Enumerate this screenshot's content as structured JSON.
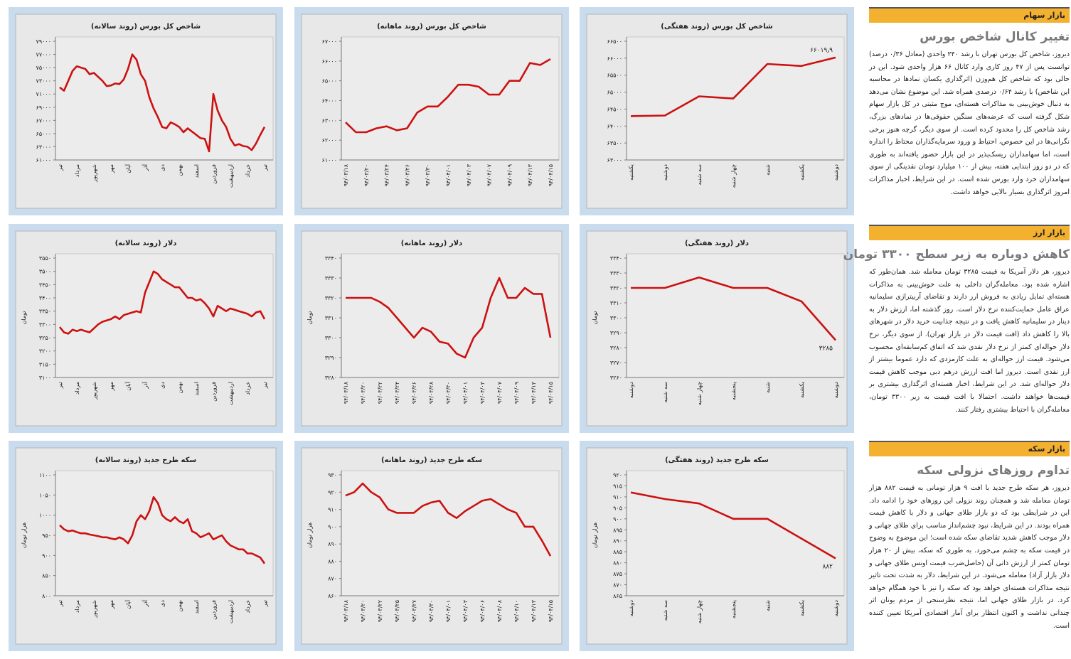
{
  "chart_data": [
    {
      "type": "line",
      "title": "شاخص کل بورس (روند هفتگی)",
      "color": "#cc1111",
      "categories": [
        "یکشنبه",
        "دوشنبه",
        "سه شنبه",
        "چهار شنبه",
        "شنبه",
        "یکشنبه",
        "دوشنبه"
      ],
      "values": [
        64290,
        64310,
        64875,
        64810,
        65830,
        65770,
        66019.9
      ],
      "value_labels": [
        null,
        null,
        null,
        null,
        null,
        null,
        "۶۶۰۱۹٫۹"
      ],
      "ylim": [
        63000,
        66500
      ],
      "yticks": [
        {
          "value": 63000,
          "label": "۶۳۰۰۰"
        },
        {
          "value": 63500,
          "label": "۶۳۵۰۰"
        },
        {
          "value": 64000,
          "label": "۶۴۰۰۰"
        },
        {
          "value": 64500,
          "label": "۶۴۵۰۰"
        },
        {
          "value": 65000,
          "label": "۶۵۰۰۰"
        },
        {
          "value": 65500,
          "label": "۶۵۵۰۰"
        },
        {
          "value": 66000,
          "label": "۶۶۰۰۰"
        },
        {
          "value": 66500,
          "label": "۶۶۵۰۰"
        }
      ]
    },
    {
      "type": "line",
      "title": "شاخص کل بورس (روند ماهانه)",
      "color": "#cc1111",
      "categories": [
        "۹۴/۰۳/۱۸",
        null,
        "۹۴/۰۳/۲۰",
        null,
        "۹۴/۰۳/۲۴",
        null,
        "۹۴/۰۳/۲۶",
        null,
        "۹۴/۰۳/۳۰",
        null,
        "۹۴/۰۴/۰۱",
        null,
        "۹۴/۰۴/۰۳",
        null,
        "۹۴/۰۴/۰۷",
        null,
        "۹۴/۰۴/۰۹",
        null,
        "۹۴/۰۴/۱۳",
        null,
        "۹۴/۰۴/۱۵"
      ],
      "values": [
        62900,
        62400,
        62400,
        62600,
        62700,
        62500,
        62600,
        63400,
        63700,
        63700,
        64200,
        64800,
        64800,
        64700,
        64300,
        64300,
        65000,
        65000,
        65900,
        65800,
        66100
      ],
      "ylim": [
        61000,
        67000
      ],
      "yticks": [
        {
          "value": 61000,
          "label": "۶۱۰۰۰"
        },
        {
          "value": 62000,
          "label": "۶۲۰۰۰"
        },
        {
          "value": 63000,
          "label": "۶۳۰۰۰"
        },
        {
          "value": 64000,
          "label": "۶۴۰۰۰"
        },
        {
          "value": 65000,
          "label": "۶۵۰۰۰"
        },
        {
          "value": 66000,
          "label": "۶۶۰۰۰"
        },
        {
          "value": 67000,
          "label": "۶۷۰۰۰"
        }
      ]
    },
    {
      "type": "line",
      "title": "شاخص کل بورس (روند سالانه)",
      "color": "#cc1111",
      "categories": [
        "تیر",
        null,
        null,
        null,
        "مرداد",
        null,
        null,
        null,
        "شهریور",
        null,
        null,
        null,
        "مهر",
        null,
        null,
        null,
        "آبان",
        null,
        null,
        null,
        "آذر",
        null,
        null,
        null,
        "دی",
        null,
        null,
        null,
        "بهمن",
        null,
        null,
        null,
        "اسفند",
        null,
        null,
        null,
        "فروردین",
        null,
        null,
        null,
        "اردیبهشت",
        null,
        null,
        null,
        "خرداد",
        null,
        null,
        null,
        "تیر"
      ],
      "values": [
        72000,
        71500,
        73000,
        74500,
        75200,
        75000,
        74800,
        74000,
        74200,
        73600,
        73000,
        72200,
        72300,
        72600,
        72500,
        73200,
        74800,
        77000,
        76200,
        74000,
        73000,
        70500,
        68800,
        67500,
        66000,
        65800,
        66700,
        66400,
        66000,
        65200,
        65800,
        65300,
        64800,
        64300,
        64200,
        62300,
        71000,
        68500,
        67000,
        66000,
        64200,
        63200,
        63400,
        63100,
        63000,
        62500,
        63500,
        64800,
        66000
      ],
      "ylim": [
        61000,
        79000
      ],
      "yticks": [
        {
          "value": 61000,
          "label": "۶۱۰۰۰"
        },
        {
          "value": 63000,
          "label": "۶۳۰۰۰"
        },
        {
          "value": 65000,
          "label": "۶۵۰۰۰"
        },
        {
          "value": 67000,
          "label": "۶۷۰۰۰"
        },
        {
          "value": 69000,
          "label": "۶۹۰۰۰"
        },
        {
          "value": 71000,
          "label": "۷۱۰۰۰"
        },
        {
          "value": 73000,
          "label": "۷۳۰۰۰"
        },
        {
          "value": 75000,
          "label": "۷۵۰۰۰"
        },
        {
          "value": 77000,
          "label": "۷۷۰۰۰"
        },
        {
          "value": 79000,
          "label": "۷۹۰۰۰"
        }
      ]
    },
    {
      "type": "line",
      "title": "دلار (روند هفتگی)",
      "ylabel": "تومان",
      "color": "#cc1111",
      "categories": [
        "دوشنبه",
        "سه شنبه",
        "چهار شنبه",
        "پنجشنبه",
        "شنبه",
        "یکشنبه",
        "دوشنبه"
      ],
      "values": [
        3320,
        3320,
        3327,
        3320,
        3320,
        3311,
        3285
      ],
      "value_labels": [
        null,
        null,
        null,
        null,
        null,
        null,
        "۳۲۸۵"
      ],
      "ylim": [
        3260,
        3340
      ],
      "yticks": [
        {
          "value": 3260,
          "label": "۳۲۶۰"
        },
        {
          "value": 3270,
          "label": "۳۲۷۰"
        },
        {
          "value": 3280,
          "label": "۳۲۸۰"
        },
        {
          "value": 3290,
          "label": "۳۲۹۰"
        },
        {
          "value": 3300,
          "label": "۳۳۰۰"
        },
        {
          "value": 3310,
          "label": "۳۳۱۰"
        },
        {
          "value": 3320,
          "label": "۳۳۲۰"
        },
        {
          "value": 3330,
          "label": "۳۳۳۰"
        },
        {
          "value": 3340,
          "label": "۳۳۴۰"
        }
      ]
    },
    {
      "type": "line",
      "title": "دلار (روند ماهانه)",
      "ylabel": "تومان",
      "color": "#cc1111",
      "categories": [
        "۹۴/۰۳/۱۸",
        null,
        "۹۴/۰۳/۲۰",
        null,
        "۹۴/۰۳/۲۲",
        null,
        "۹۴/۰۳/۲۴",
        null,
        "۹۴/۰۳/۲۶",
        null,
        "۹۴/۰۳/۲۸",
        null,
        "۹۴/۰۳/۳۰",
        null,
        "۹۴/۰۴/۰۱",
        null,
        "۹۴/۰۴/۰۳",
        null,
        "۹۴/۰۴/۰۷",
        null,
        "۹۴/۰۴/۰۹",
        null,
        "۹۴/۰۴/۱۳",
        null,
        "۹۴/۰۴/۱۵"
      ],
      "values": [
        3320,
        3320,
        3320,
        3320,
        3318,
        3315,
        3310,
        3305,
        3300,
        3305,
        3303,
        3298,
        3297,
        3292,
        3290,
        3300,
        3305,
        3320,
        3330,
        3320,
        3320,
        3325,
        3322,
        3322,
        3300
      ],
      "ylim": [
        3280,
        3340
      ],
      "yticks": [
        {
          "value": 3280,
          "label": "۳۲۸۰"
        },
        {
          "value": 3290,
          "label": "۳۲۹۰"
        },
        {
          "value": 3300,
          "label": "۳۳۰۰"
        },
        {
          "value": 3310,
          "label": "۳۳۱۰"
        },
        {
          "value": 3320,
          "label": "۳۳۲۰"
        },
        {
          "value": 3330,
          "label": "۳۳۳۰"
        },
        {
          "value": 3340,
          "label": "۳۳۴۰"
        }
      ]
    },
    {
      "type": "line",
      "title": "دلار (روند سالانه)",
      "ylabel": "تومان",
      "color": "#cc1111",
      "categories": [
        "تیر",
        null,
        null,
        null,
        "مرداد",
        null,
        null,
        null,
        "شهریور",
        null,
        null,
        null,
        "مهر",
        null,
        null,
        null,
        "آبان",
        null,
        null,
        null,
        "آذر",
        null,
        null,
        null,
        "دی",
        null,
        null,
        null,
        "بهمن",
        null,
        null,
        null,
        "اسفند",
        null,
        null,
        null,
        "فروردین",
        null,
        null,
        null,
        "اردیبهشت",
        null,
        null,
        null,
        "خرداد",
        null,
        null,
        null,
        "تیر"
      ],
      "values": [
        3290,
        3270,
        3265,
        3280,
        3275,
        3280,
        3275,
        3270,
        3285,
        3300,
        3310,
        3315,
        3320,
        3330,
        3320,
        3335,
        3340,
        3345,
        3350,
        3345,
        3420,
        3460,
        3500,
        3490,
        3470,
        3460,
        3450,
        3440,
        3440,
        3420,
        3400,
        3400,
        3390,
        3395,
        3380,
        3360,
        3330,
        3370,
        3360,
        3350,
        3360,
        3355,
        3350,
        3345,
        3340,
        3330,
        3345,
        3350,
        3320
      ],
      "ylim": [
        3100,
        3550
      ],
      "yticks": [
        {
          "value": 3100,
          "label": "۳۱۰۰"
        },
        {
          "value": 3150,
          "label": "۳۱۵۰"
        },
        {
          "value": 3200,
          "label": "۳۲۰۰"
        },
        {
          "value": 3250,
          "label": "۳۲۵۰"
        },
        {
          "value": 3300,
          "label": "۳۳۰۰"
        },
        {
          "value": 3350,
          "label": "۳۳۵۰"
        },
        {
          "value": 3400,
          "label": "۳۴۰۰"
        },
        {
          "value": 3450,
          "label": "۳۴۵۰"
        },
        {
          "value": 3500,
          "label": "۳۵۰۰"
        },
        {
          "value": 3550,
          "label": "۳۵۵۰"
        }
      ]
    },
    {
      "type": "line",
      "title": "سکه طرح جدید (روند هفتگی)",
      "ylabel": "هزار تومان",
      "color": "#cc1111",
      "categories": [
        "دوشنبه",
        "سه شنبه",
        "چهار شنبه",
        "پنجشنبه",
        "شنبه",
        "یکشنبه",
        "دوشنبه"
      ],
      "values": [
        912,
        909,
        907,
        900,
        900,
        891,
        882
      ],
      "value_labels": [
        null,
        null,
        null,
        null,
        null,
        null,
        "۸۸۲"
      ],
      "ylim": [
        865,
        920
      ],
      "yticks": [
        {
          "value": 865,
          "label": "۸۶۵"
        },
        {
          "value": 870,
          "label": "۸۷۰"
        },
        {
          "value": 875,
          "label": "۸۷۵"
        },
        {
          "value": 880,
          "label": "۸۸۰"
        },
        {
          "value": 885,
          "label": "۸۸۵"
        },
        {
          "value": 890,
          "label": "۸۹۰"
        },
        {
          "value": 895,
          "label": "۸۹۵"
        },
        {
          "value": 900,
          "label": "۹۰۰"
        },
        {
          "value": 905,
          "label": "۹۰۵"
        },
        {
          "value": 910,
          "label": "۹۱۰"
        },
        {
          "value": 915,
          "label": "۹۱۵"
        },
        {
          "value": 920,
          "label": "۹۲۰"
        }
      ]
    },
    {
      "type": "line",
      "title": "سکه طرح جدید (روند ماهانه)",
      "ylabel": "هزار تومان",
      "color": "#cc1111",
      "categories": [
        "۹۴/۰۳/۱۸",
        null,
        "۹۴/۰۳/۲۰",
        null,
        "۹۴/۰۳/۲۲",
        null,
        "۹۴/۰۳/۲۵",
        null,
        "۹۴/۰۳/۲۷",
        null,
        "۹۴/۰۳/۳۰",
        null,
        "۹۴/۰۴/۰۱",
        null,
        "۹۴/۰۴/۰۳",
        null,
        "۹۴/۰۴/۰۶",
        null,
        "۹۴/۰۴/۰۸",
        null,
        "۹۴/۰۴/۱۰",
        null,
        "۹۴/۰۴/۱۳",
        null,
        "۹۴/۰۴/۱۵"
      ],
      "values": [
        918,
        920,
        925,
        920,
        917,
        910,
        908,
        908,
        908,
        912,
        914,
        915,
        908,
        905,
        909,
        912,
        915,
        916,
        913,
        910,
        908,
        900,
        900,
        892,
        883
      ],
      "ylim": [
        860,
        930
      ],
      "yticks": [
        {
          "value": 860,
          "label": "۸۶۰"
        },
        {
          "value": 870,
          "label": "۸۷۰"
        },
        {
          "value": 880,
          "label": "۸۸۰"
        },
        {
          "value": 890,
          "label": "۸۹۰"
        },
        {
          "value": 900,
          "label": "۹۰۰"
        },
        {
          "value": 910,
          "label": "۹۱۰"
        },
        {
          "value": 920,
          "label": "۹۲۰"
        },
        {
          "value": 930,
          "label": "۹۳۰"
        }
      ]
    },
    {
      "type": "line",
      "title": "سکه طرح جدید (روند سالانه)",
      "ylabel": "هزار تومان",
      "color": "#cc1111",
      "categories": [
        "تیر",
        null,
        null,
        null,
        "مرداد",
        null,
        null,
        null,
        "شهریور",
        null,
        null,
        null,
        "مهر",
        null,
        null,
        null,
        "آبان",
        null,
        null,
        null,
        "آذر",
        null,
        null,
        null,
        "دی",
        null,
        null,
        null,
        "بهمن",
        null,
        null,
        null,
        "اسفند",
        null,
        null,
        null,
        "فروردین",
        null,
        null,
        null,
        "اردیبهشت",
        null,
        null,
        null,
        "خرداد",
        null,
        null,
        null,
        "تیر"
      ],
      "values": [
        975,
        965,
        960,
        962,
        958,
        955,
        955,
        952,
        950,
        948,
        945,
        945,
        942,
        940,
        945,
        940,
        930,
        950,
        985,
        1000,
        990,
        1010,
        1045,
        1030,
        1000,
        990,
        985,
        995,
        985,
        980,
        990,
        960,
        955,
        945,
        950,
        955,
        940,
        945,
        950,
        935,
        925,
        920,
        915,
        915,
        905,
        905,
        900,
        895,
        880
      ],
      "ylim": [
        800,
        1100
      ],
      "yticks": [
        {
          "value": 800,
          "label": "۸۰۰"
        },
        {
          "value": 850,
          "label": "۸۵۰"
        },
        {
          "value": 900,
          "label": "۹۰۰"
        },
        {
          "value": 950,
          "label": "۹۵۰"
        },
        {
          "value": 1000,
          "label": "۱۰۰۰"
        },
        {
          "value": 1050,
          "label": "۱۰۵۰"
        },
        {
          "value": 1100,
          "label": "۱۱۰۰"
        }
      ]
    }
  ],
  "articles": [
    {
      "section": "بازار سهام",
      "headline": "تغییر کانال شاخص بورس",
      "body": "دیروز، شاخص کل بورس تهران با رشد ۲۴۰ واحدی (معادل ۰/۳۶ درصد) توانست پس از ۴۷ روز کاری وارد کانال ۶۶ هزار واحدی شود. این در حالی بود که شاخص کل هم‌وزن (اثرگذاری یکسان نمادها در محاسبه این شاخص) با رشد ۰/۶۴ درصدی همراه شد. این موضوع نشان می‌دهد به دنبال خوش‌بینی به مذاکرات هسته‌ای، موج مثبتی در کل بازار سهام شکل گرفته است که عرضه‌های سنگین حقوقی‌ها در نمادهای بزرگ، رشد شاخص کل را محدود کرده است. از سوی دیگر، گرچه هنوز برخی نگرانی‌ها در این خصوص، احتیاط و ورود سرمایه‌گذاران محتاط را اندازه است، اما سهامداران ریسک‌پذیر در این بازار حضور یافته‌اند به طوری که در دو روز ابتدایی هفته، بیش از ۱۰۰ میلیارد تومان نقدینگی از سوی سهامداران خرد وارد بورس شده است. در این شرایط، اخبار مذاکرات امروز اثرگذاری بسیار بالایی خواهد داشت."
    },
    {
      "section": "بازار ارز",
      "headline": "کاهش دوباره به زیر سطح ۳۳۰۰ تومان",
      "body": "دیروز، هر دلار آمریکا به قیمت ۳۲۸۵ تومان معامله شد. همان‌طور که اشاره شده بود، معامله‌گران داخلی به علت خوش‌بینی به مذاکرات هسته‌ای تمایل زیادی به فروش ارز دارند و تقاضای آربیتراژی سلیمانیه عراق عامل حمایت‌کننده نرخ دلار است. روز گذشته اما، ارزش دلار به دینار در سلیمانیه کاهش یافت و در نتیجه جذابیت خرید دلار در شهرهای بالا را کاهش داد (افت قیمت دلار در بازار تهران). از سوی دیگر، نرخ دلار حواله‌ای کمتر از نرخ دلار نقدی شد که اتفاق کم‌سابقه‌ای محسوب می‌شود. قیمت ارز حواله‌ای به علت کارمزدی که دارد عموما بیشتر از ارز نقدی است. دیروز اما افت ارزش درهم دبی موجب کاهش قیمت دلار حواله‌ای شد. در این شرایط، اخبار هسته‌ای اثرگذاری بیشتری بر قیمت‌ها خواهند داشت. احتمالا با افت قیمت به زیر ۳۳۰۰ تومان، معامله‌گران با احتیاط بیشتری رفتار کنند."
    },
    {
      "section": "بازار سکه",
      "headline": "تداوم روزهای نزولی سکه",
      "body": "دیروز، هر سکه طرح جدید با افت ۹ هزار تومانی به قیمت ۸۸۲ هزار تومان معامله شد و همچنان روند نزولی این روزهای خود را ادامه داد. این در شرایطی بود که دو بازار طلای جهانی و دلار با کاهش قیمت همراه بودند. در این شرایط، نبود چشم‌انداز مناسب برای طلای جهانی و دلار موجب کاهش شدید تقاضای سکه شده است؛ این موضوع به وضوح در قیمت سکه به چشم می‌خورد. به طوری که سکه، بیش از ۲۰ هزار تومان کمتر از ارزش ذاتی آن (حاصل‌ضرب قیمت اونس طلای جهانی و دلار بازار آزاد) معامله می‌شود. در این شرایط، دلار به شدت تحت تاثیر نتیجه مذاکرات هسته‌ای خواهد بود که سکه را نیز با خود همگام خواهد کرد. در بازار طلای جهانی اما، نتیجه نظرسنجی از مردم یونان اثر چندانی نداشت و اکنون انتظار برای آمار اقتصادی آمریکا تعیین کننده است."
    }
  ]
}
